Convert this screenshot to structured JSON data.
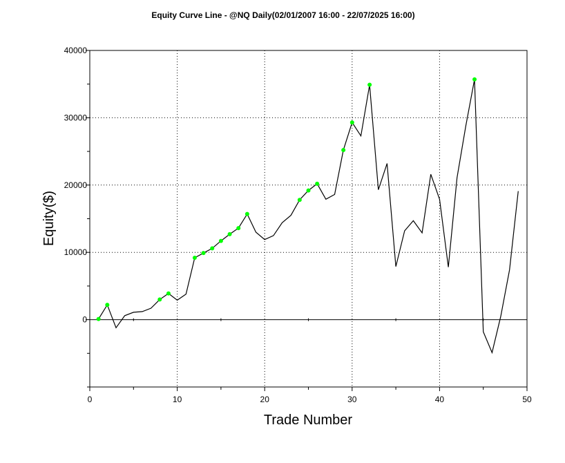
{
  "chart_data": {
    "type": "line",
    "title": "Equity Curve Line - @NQ Daily(02/01/2007 16:00 - 22/07/2025 16:00)",
    "xlabel": "Trade Number",
    "ylabel": "Equity($)",
    "xlim": [
      0,
      50
    ],
    "ylim": [
      -10000,
      40000
    ],
    "xticks": [
      0,
      10,
      20,
      30,
      40,
      50
    ],
    "yticks": [
      0,
      10000,
      20000,
      30000,
      40000
    ],
    "grid": "dotted",
    "series": [
      {
        "line_color": "#000000",
        "x": [
          1,
          2,
          3,
          4,
          5,
          6,
          7,
          8,
          9,
          10,
          11,
          12,
          13,
          14,
          15,
          16,
          17,
          18,
          19,
          20,
          21,
          22,
          23,
          24,
          25,
          26,
          27,
          28,
          29,
          30,
          31,
          32,
          33,
          34,
          35,
          36,
          37,
          38,
          39,
          40,
          41,
          42,
          43,
          44,
          45,
          46,
          47,
          48,
          49
        ],
        "y": [
          100,
          2200,
          -1200,
          600,
          1100,
          1200,
          1700,
          3000,
          3900,
          2900,
          3800,
          9200,
          9900,
          10600,
          11700,
          12700,
          13600,
          15700,
          13000,
          11900,
          12500,
          14400,
          15500,
          17800,
          19200,
          20200,
          17900,
          18600,
          25200,
          29300,
          27300,
          34900,
          19300,
          23200,
          7900,
          13200,
          14700,
          12900,
          21600,
          17900,
          7800,
          21100,
          28800,
          35700,
          -1800,
          -4900,
          500,
          7400,
          19100
        ]
      }
    ],
    "highlight_markers": {
      "color": "#00ff00",
      "x": [
        1,
        2,
        8,
        9,
        12,
        13,
        14,
        15,
        16,
        17,
        18,
        24,
        25,
        26,
        29,
        30,
        32,
        44
      ]
    }
  }
}
